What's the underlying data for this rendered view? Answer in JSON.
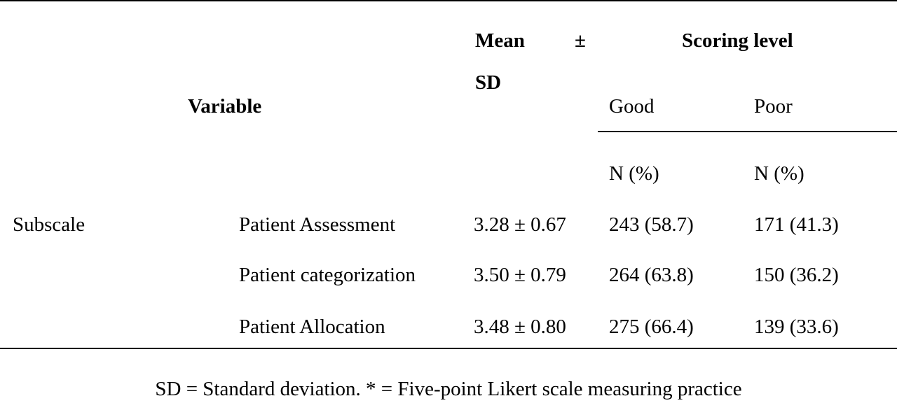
{
  "table": {
    "header": {
      "variable": "Variable",
      "mean_sd_line1_left": "Mean",
      "mean_sd_line1_right": "±",
      "mean_sd_line2": "SD",
      "scoring_level": "Scoring level",
      "good": "Good",
      "poor": "Poor",
      "good_unit": "N (%)",
      "poor_unit": "N (%)"
    },
    "group_label": "Subscale",
    "rows": [
      {
        "label": "Patient Assessment",
        "mean_sd": "3.28 ± 0.67",
        "good": "243 (58.7)",
        "poor": "171 (41.3)"
      },
      {
        "label": "Patient categorization",
        "mean_sd": "3.50 ± 0.79",
        "good": "264 (63.8)",
        "poor": "150 (36.2)"
      },
      {
        "label": "Patient Allocation",
        "mean_sd": "3.48 ± 0.80",
        "good": "275 (66.4)",
        "poor": "139 (33.6)"
      }
    ],
    "footnote": "SD = Standard deviation. * = Five-point Likert scale measuring practice"
  }
}
